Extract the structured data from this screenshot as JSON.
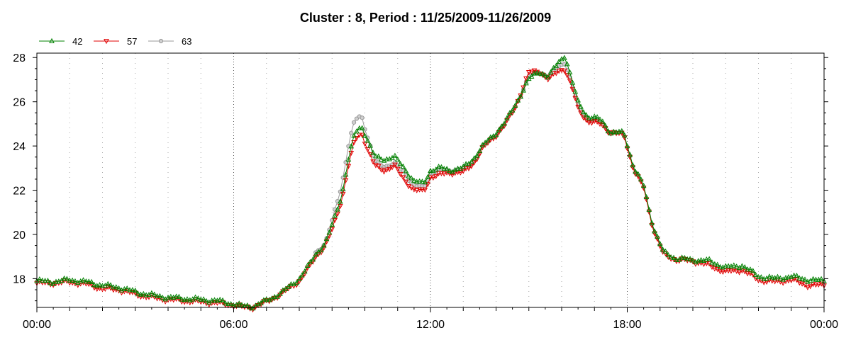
{
  "chart_data": {
    "type": "line",
    "title": "Cluster : 8, Period : 11/25/2009-11/26/2009",
    "xlabel": "",
    "ylabel": "",
    "x_unit": "hours since 00:00",
    "xlim": [
      0,
      24
    ],
    "ylim": [
      16.7,
      28.2
    ],
    "x_ticks": [
      {
        "value": 0,
        "label": "00:00"
      },
      {
        "value": 6,
        "label": "06:00"
      },
      {
        "value": 12,
        "label": "12:00"
      },
      {
        "value": 18,
        "label": "18:00"
      },
      {
        "value": 24,
        "label": "00:00"
      }
    ],
    "y_ticks": [
      {
        "value": 18,
        "label": "18"
      },
      {
        "value": 20,
        "label": "20"
      },
      {
        "value": 22,
        "label": "22"
      },
      {
        "value": 24,
        "label": "24"
      },
      {
        "value": 26,
        "label": "26"
      },
      {
        "value": 28,
        "label": "28"
      }
    ],
    "grid": {
      "x_major": true,
      "x_minor": true,
      "y": false,
      "style": "dotted"
    },
    "legend": {
      "position": "top-left"
    },
    "series": [
      {
        "name": "42",
        "color": "#008000",
        "marker": "triangle-up",
        "points": [
          [
            0,
            17.9
          ],
          [
            0.5,
            17.85
          ],
          [
            1,
            17.95
          ],
          [
            1.5,
            17.85
          ],
          [
            2,
            17.7
          ],
          [
            2.5,
            17.6
          ],
          [
            3,
            17.4
          ],
          [
            3.5,
            17.25
          ],
          [
            4,
            17.15
          ],
          [
            4.5,
            17.1
          ],
          [
            5,
            17.05
          ],
          [
            5.5,
            17.0
          ],
          [
            6,
            16.85
          ],
          [
            6.3,
            16.75
          ],
          [
            6.6,
            16.75
          ],
          [
            7,
            17.0
          ],
          [
            7.5,
            17.4
          ],
          [
            8,
            18.0
          ],
          [
            8.3,
            18.6
          ],
          [
            8.5,
            19.1
          ],
          [
            8.8,
            19.6
          ],
          [
            9,
            20.4
          ],
          [
            9.3,
            21.8
          ],
          [
            9.5,
            23.4
          ],
          [
            9.7,
            24.6
          ],
          [
            9.9,
            24.9
          ],
          [
            10.1,
            24.2
          ],
          [
            10.3,
            23.5
          ],
          [
            10.6,
            23.4
          ],
          [
            10.9,
            23.5
          ],
          [
            11.2,
            23.0
          ],
          [
            11.5,
            22.4
          ],
          [
            11.8,
            22.3
          ],
          [
            12,
            22.9
          ],
          [
            12.3,
            23.0
          ],
          [
            12.6,
            22.9
          ],
          [
            13,
            23.0
          ],
          [
            13.3,
            23.4
          ],
          [
            13.6,
            24.0
          ],
          [
            14,
            24.6
          ],
          [
            14.3,
            25.1
          ],
          [
            14.6,
            25.9
          ],
          [
            15,
            27.0
          ],
          [
            15.3,
            27.4
          ],
          [
            15.6,
            27.1
          ],
          [
            15.9,
            27.8
          ],
          [
            16.1,
            28.1
          ],
          [
            16.3,
            27.0
          ],
          [
            16.5,
            26.0
          ],
          [
            16.8,
            25.3
          ],
          [
            17.2,
            25.2
          ],
          [
            17.5,
            24.6
          ],
          [
            17.9,
            24.6
          ],
          [
            18.2,
            23.0
          ],
          [
            18.5,
            22.2
          ],
          [
            18.8,
            20.3
          ],
          [
            19.1,
            19.2
          ],
          [
            19.5,
            18.9
          ],
          [
            20,
            18.85
          ],
          [
            20.5,
            18.8
          ],
          [
            21,
            18.5
          ],
          [
            21.5,
            18.6
          ],
          [
            22,
            18.1
          ],
          [
            22.5,
            18.0
          ],
          [
            23,
            18.1
          ],
          [
            23.5,
            17.95
          ],
          [
            24,
            17.9
          ]
        ]
      },
      {
        "name": "57",
        "color": "#e00000",
        "marker": "triangle-down",
        "points": [
          [
            0,
            17.8
          ],
          [
            0.5,
            17.8
          ],
          [
            1,
            17.85
          ],
          [
            1.5,
            17.75
          ],
          [
            2,
            17.55
          ],
          [
            2.5,
            17.5
          ],
          [
            3,
            17.3
          ],
          [
            3.5,
            17.15
          ],
          [
            4,
            17.05
          ],
          [
            4.5,
            17.0
          ],
          [
            5,
            16.95
          ],
          [
            5.5,
            16.9
          ],
          [
            6,
            16.8
          ],
          [
            6.3,
            16.7
          ],
          [
            6.6,
            16.7
          ],
          [
            7,
            16.95
          ],
          [
            7.5,
            17.35
          ],
          [
            8,
            17.9
          ],
          [
            8.3,
            18.5
          ],
          [
            8.5,
            19.0
          ],
          [
            8.8,
            19.5
          ],
          [
            9,
            20.2
          ],
          [
            9.3,
            21.6
          ],
          [
            9.5,
            23.1
          ],
          [
            9.7,
            24.3
          ],
          [
            9.9,
            24.6
          ],
          [
            10.1,
            23.8
          ],
          [
            10.3,
            23.1
          ],
          [
            10.6,
            22.9
          ],
          [
            10.9,
            23.1
          ],
          [
            11.2,
            22.5
          ],
          [
            11.5,
            22.0
          ],
          [
            11.8,
            21.95
          ],
          [
            12,
            22.6
          ],
          [
            12.3,
            22.7
          ],
          [
            12.6,
            22.8
          ],
          [
            13,
            22.8
          ],
          [
            13.3,
            23.2
          ],
          [
            13.6,
            23.9
          ],
          [
            14,
            24.5
          ],
          [
            14.3,
            25.0
          ],
          [
            14.6,
            25.8
          ],
          [
            15,
            27.3
          ],
          [
            15.3,
            27.4
          ],
          [
            15.6,
            27.0
          ],
          [
            15.9,
            27.4
          ],
          [
            16.1,
            27.5
          ],
          [
            16.3,
            26.7
          ],
          [
            16.5,
            25.7
          ],
          [
            16.8,
            25.1
          ],
          [
            17.2,
            25.0
          ],
          [
            17.5,
            24.6
          ],
          [
            17.9,
            24.5
          ],
          [
            18.2,
            22.9
          ],
          [
            18.5,
            22.1
          ],
          [
            18.8,
            20.2
          ],
          [
            19.1,
            19.1
          ],
          [
            19.5,
            18.85
          ],
          [
            20,
            18.8
          ],
          [
            20.5,
            18.6
          ],
          [
            21,
            18.3
          ],
          [
            21.5,
            18.4
          ],
          [
            22,
            17.95
          ],
          [
            22.5,
            17.85
          ],
          [
            23,
            17.95
          ],
          [
            23.5,
            17.7
          ],
          [
            24,
            17.7
          ]
        ]
      },
      {
        "name": "63",
        "color": "#999999",
        "marker": "circle",
        "points": [
          [
            8.5,
            19.2
          ],
          [
            8.8,
            19.6
          ],
          [
            9,
            20.6
          ],
          [
            9.3,
            22.3
          ],
          [
            9.5,
            24.0
          ],
          [
            9.7,
            25.2
          ],
          [
            9.9,
            25.4
          ],
          [
            10.1,
            24.3
          ],
          [
            10.3,
            23.3
          ],
          [
            10.6,
            23.1
          ],
          [
            10.9,
            23.2
          ],
          [
            11.2,
            22.8
          ],
          [
            11.5,
            22.2
          ],
          [
            11.8,
            22.1
          ],
          [
            12,
            22.8
          ],
          [
            12.3,
            22.9
          ],
          [
            12.6,
            22.9
          ],
          [
            13,
            22.95
          ],
          [
            13.3,
            23.3
          ],
          [
            13.6,
            23.95
          ],
          [
            14,
            24.55
          ],
          [
            14.3,
            25.05
          ],
          [
            14.6,
            25.85
          ],
          [
            15,
            27.1
          ],
          [
            15.3,
            27.4
          ],
          [
            15.6,
            27.1
          ],
          [
            15.9,
            27.6
          ],
          [
            16.1,
            27.8
          ],
          [
            16.3,
            26.8
          ],
          [
            16.5,
            25.8
          ],
          [
            16.8,
            25.2
          ],
          [
            17.2,
            25.1
          ],
          [
            17.5,
            24.6
          ],
          [
            17.9,
            24.55
          ],
          [
            18.2,
            22.95
          ],
          [
            18.5,
            22.15
          ],
          [
            18.8,
            20.25
          ],
          [
            19.1,
            19.15
          ]
        ]
      }
    ]
  }
}
